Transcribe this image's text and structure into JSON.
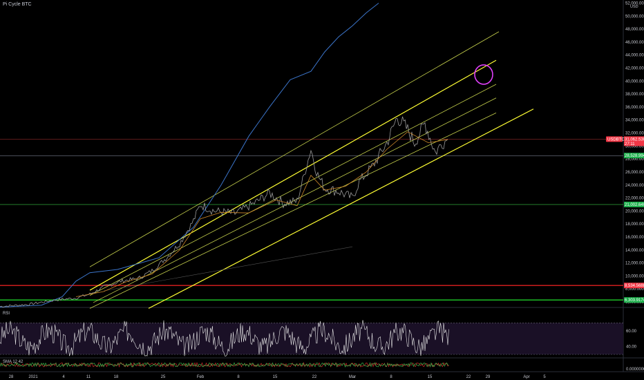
{
  "header": {
    "title": "Pi Cycle BTC",
    "currency": "USD"
  },
  "panes": {
    "rsi_title": "RSI",
    "sma_title": "SMA 12 42"
  },
  "chart_data": {
    "type": "line",
    "title": "Pi Cycle BTC",
    "ylim": [
      0,
      52000
    ],
    "y_tick_labels": [
      "52,000.00000",
      "50,000.00000",
      "48,000.00000",
      "46,000.00000",
      "44,000.00000",
      "42,000.00000",
      "40,000.00000",
      "38,000.00000",
      "36,000.00000",
      "34,000.00000",
      "32,000.00000",
      "30,000.00000",
      "28,000.00000",
      "26,000.00000",
      "24,000.00000",
      "22,000.00000",
      "20,000.00000",
      "18,000.00000",
      "16,000.00000",
      "14,000.00000",
      "12,000.00000",
      "10,000.00000",
      "8,000.00000",
      "6,000.00000"
    ],
    "x_tick_labels": [
      "28",
      "2021",
      "4",
      "11",
      "18",
      "25",
      "Feb",
      "8",
      "15",
      "22",
      "Mar",
      "8",
      "15",
      "22",
      "29",
      "Apr",
      "5"
    ],
    "price_tags": [
      {
        "text": "USDBTC",
        "value": "31,062.53000",
        "sub": "27:11",
        "color": "#f23645"
      },
      {
        "text": "",
        "value": "28,528.99442",
        "color": "#1bae4a"
      },
      {
        "text": "",
        "value": "21,002.64011",
        "color": "#1bae4a"
      },
      {
        "text": "",
        "value": "8,534.56889",
        "color": "#f23645"
      },
      {
        "text": "",
        "value": "6,303.91748",
        "color": "#1bae4a"
      }
    ],
    "horizontal_levels": [
      {
        "y": 31060,
        "color": "#7a2323"
      },
      {
        "y": 28500,
        "color": "#555a66"
      },
      {
        "y": 21000,
        "color": "#2fa83a"
      },
      {
        "y": 8530,
        "color": "#e02020"
      },
      {
        "y": 6300,
        "color": "#1fcf2a"
      }
    ],
    "series": [
      {
        "name": "",
        "color": "#3b74c9",
        "points": [
          [
            0,
            5200
          ],
          [
            60,
            5500
          ],
          [
            90,
            6800
          ],
          [
            110,
            9200
          ],
          [
            130,
            10500
          ],
          [
            170,
            11000
          ],
          [
            230,
            12800
          ],
          [
            280,
            17500
          ],
          [
            320,
            24000
          ],
          [
            360,
            31500
          ],
          [
            390,
            36000
          ],
          [
            420,
            40200
          ],
          [
            450,
            41500
          ],
          [
            470,
            44500
          ],
          [
            490,
            46800
          ],
          [
            510,
            48500
          ],
          [
            530,
            50500
          ],
          [
            548,
            52000
          ]
        ]
      },
      {
        "name": "",
        "color": "#9c9c9c",
        "points": [
          [
            0,
            5300
          ],
          [
            40,
            5600
          ],
          [
            80,
            6300
          ],
          [
            110,
            6600
          ],
          [
            130,
            7200
          ],
          [
            150,
            8300
          ],
          [
            175,
            9200
          ],
          [
            200,
            9600
          ],
          [
            220,
            10800
          ],
          [
            240,
            12700
          ],
          [
            260,
            15000
          ],
          [
            280,
            18500
          ],
          [
            290,
            21000
          ],
          [
            310,
            20000
          ],
          [
            340,
            19600
          ],
          [
            370,
            21300
          ],
          [
            390,
            22800
          ],
          [
            410,
            21200
          ],
          [
            430,
            21500
          ],
          [
            450,
            29500
          ],
          [
            460,
            25500
          ],
          [
            470,
            23500
          ],
          [
            490,
            23000
          ],
          [
            510,
            22000
          ],
          [
            520,
            24500
          ],
          [
            540,
            27000
          ],
          [
            560,
            30500
          ],
          [
            575,
            34500
          ],
          [
            590,
            32500
          ],
          [
            600,
            30500
          ],
          [
            615,
            33500
          ],
          [
            630,
            29000
          ],
          [
            640,
            30500
          ],
          [
            648,
            31060
          ]
        ]
      },
      {
        "name": "",
        "color": "#d08a2a",
        "points": [
          [
            110,
            6800
          ],
          [
            150,
            7600
          ],
          [
            180,
            9000
          ],
          [
            220,
            10300
          ],
          [
            260,
            14000
          ],
          [
            290,
            18800
          ],
          [
            320,
            19800
          ],
          [
            360,
            19700
          ],
          [
            400,
            21700
          ],
          [
            430,
            20800
          ],
          [
            450,
            25500
          ],
          [
            470,
            23200
          ],
          [
            500,
            23800
          ],
          [
            530,
            26000
          ],
          [
            560,
            29500
          ],
          [
            590,
            32200
          ],
          [
            620,
            30500
          ],
          [
            648,
            31000
          ]
        ]
      }
    ],
    "channels": [
      {
        "from": [
          130,
          11400
        ],
        "to": [
          722,
          47600
        ],
        "color": "#c8d34d",
        "width": 0.8
      },
      {
        "from": [
          130,
          7800
        ],
        "to": [
          718,
          43200
        ],
        "color": "#ffff33",
        "width": 1.2
      },
      {
        "from": [
          130,
          7000
        ],
        "to": [
          718,
          39500
        ],
        "color": "#c8d34d",
        "width": 0.8
      },
      {
        "from": [
          135,
          5900
        ],
        "to": [
          718,
          37400
        ],
        "color": "#c8d34d",
        "width": 0.8
      },
      {
        "from": [
          130,
          5000
        ],
        "to": [
          718,
          35100
        ],
        "color": "#c8d34d",
        "width": 0.8
      },
      {
        "from": [
          215,
          5000
        ],
        "to": [
          772,
          35700
        ],
        "color": "#ffff33",
        "width": 1.2
      },
      {
        "from": [
          150,
          7700
        ],
        "to": [
          510,
          14500
        ],
        "color": "#555555",
        "width": 0.6
      }
    ],
    "annotation_circle": {
      "x": 700,
      "y": 41000,
      "color": "#e040fb"
    },
    "rsi": {
      "ylim": [
        30,
        80
      ],
      "tick_labels": [
        "60.00",
        "40.00"
      ],
      "bands": [
        70,
        30
      ]
    },
    "sma_pane": {
      "tick_labels": [
        "0.00000000"
      ]
    }
  }
}
